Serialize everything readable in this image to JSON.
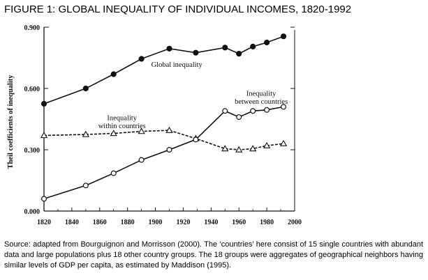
{
  "figure_title": "FIGURE 1: GLOBAL INEQUALITY OF INDIVIDUAL INCOMES, 1820-1992",
  "caption": "Source: adapted from Bourguignon and Morrisson (2000). The ‘countries’ here consist of 15 single countries with abundant data and large populations plus 18 other country groups. The 18 groups were aggregates of geographical neighbors having similar levels of GDP per capita, as estimated by Maddison (1995).",
  "chart_data": {
    "type": "line",
    "title": "",
    "xlabel": "",
    "ylabel": "Theil coefficients of inequality",
    "xlim": [
      1820,
      2000
    ],
    "ylim": [
      0,
      0.9
    ],
    "x_ticks": [
      "1820",
      "1840",
      "1860",
      "1880",
      "1900",
      "1920",
      "1940",
      "1960",
      "1980",
      "2000"
    ],
    "y_ticks": [
      "0.000",
      "0.300",
      "0.600",
      "0.900"
    ],
    "grid": false,
    "legend": "none",
    "series": [
      {
        "name": "Global inequality",
        "marker": "filled-circle",
        "label_lines": [
          "Global inequality"
        ],
        "x": [
          1820,
          1850,
          1870,
          1890,
          1910,
          1929,
          1950,
          1960,
          1970,
          1980,
          1992
        ],
        "y": [
          0.525,
          0.6,
          0.67,
          0.745,
          0.795,
          0.775,
          0.8,
          0.77,
          0.805,
          0.825,
          0.855
        ]
      },
      {
        "name": "Inequality within countries",
        "marker": "open-triangle",
        "label_lines": [
          "Inequality",
          "within countries"
        ],
        "x": [
          1820,
          1850,
          1870,
          1890,
          1910,
          1929,
          1950,
          1960,
          1970,
          1980,
          1992
        ],
        "y": [
          0.37,
          0.375,
          0.38,
          0.39,
          0.395,
          0.355,
          0.305,
          0.3,
          0.305,
          0.32,
          0.33
        ]
      },
      {
        "name": "Inequality between countries",
        "marker": "open-circle",
        "label_lines": [
          "Inequality",
          "between countries"
        ],
        "x": [
          1820,
          1850,
          1870,
          1890,
          1910,
          1929,
          1950,
          1960,
          1970,
          1980,
          1992
        ],
        "y": [
          0.06,
          0.125,
          0.185,
          0.25,
          0.3,
          0.35,
          0.49,
          0.46,
          0.49,
          0.495,
          0.51
        ]
      }
    ]
  }
}
